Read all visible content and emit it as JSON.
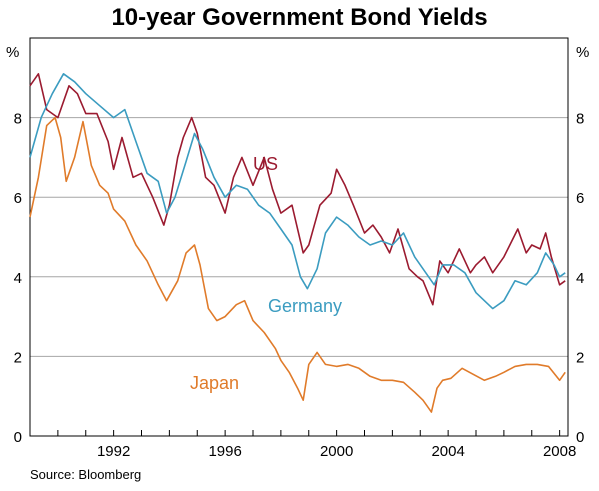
{
  "chart_data": {
    "type": "line",
    "title": "10-year Government Bond Yields",
    "source": "Source: Bloomberg",
    "y_unit_left": "%",
    "y_unit_right": "%",
    "ylim": [
      0,
      10
    ],
    "y_ticks": [
      0,
      2,
      4,
      6,
      8
    ],
    "xlim": [
      1989.0,
      2008.3
    ],
    "x_ticks": [
      "1992",
      "1996",
      "2000",
      "2004",
      "2008"
    ],
    "grid": true,
    "series": [
      {
        "name": "US",
        "color": "#9b1b30",
        "x": [
          1989.0,
          1989.3,
          1989.6,
          1990.0,
          1990.4,
          1990.7,
          1991.0,
          1991.4,
          1991.8,
          1992.0,
          1992.3,
          1992.7,
          1993.0,
          1993.4,
          1993.8,
          1994.0,
          1994.3,
          1994.5,
          1994.8,
          1995.0,
          1995.3,
          1995.6,
          1996.0,
          1996.3,
          1996.6,
          1997.0,
          1997.4,
          1997.7,
          1998.0,
          1998.4,
          1998.8,
          1999.0,
          1999.4,
          1999.8,
          2000.0,
          2000.3,
          2000.6,
          2001.0,
          2001.3,
          2001.6,
          2001.9,
          2002.2,
          2002.6,
          2002.9,
          2003.1,
          2003.45,
          2003.7,
          2004.0,
          2004.4,
          2004.8,
          2005.0,
          2005.3,
          2005.6,
          2006.0,
          2006.5,
          2006.8,
          2007.0,
          2007.3,
          2007.5,
          2007.7,
          2008.0,
          2008.2
        ],
        "y": [
          8.8,
          9.1,
          8.2,
          8.0,
          8.8,
          8.6,
          8.1,
          8.1,
          7.4,
          6.7,
          7.5,
          6.5,
          6.6,
          6.0,
          5.3,
          5.8,
          7.0,
          7.5,
          8.0,
          7.6,
          6.5,
          6.3,
          5.6,
          6.5,
          7.0,
          6.3,
          7.0,
          6.2,
          5.6,
          5.8,
          4.6,
          4.8,
          5.8,
          6.1,
          6.7,
          6.3,
          5.8,
          5.1,
          5.3,
          5.0,
          4.6,
          5.2,
          4.2,
          4.0,
          3.9,
          3.3,
          4.4,
          4.1,
          4.7,
          4.1,
          4.3,
          4.5,
          4.1,
          4.5,
          5.2,
          4.6,
          4.8,
          4.7,
          5.1,
          4.5,
          3.8,
          3.9
        ]
      },
      {
        "name": "Germany",
        "color": "#3b9cc0",
        "x": [
          1989.0,
          1989.4,
          1989.8,
          1990.2,
          1990.6,
          1991.0,
          1991.5,
          1992.0,
          1992.4,
          1992.8,
          1993.2,
          1993.6,
          1993.9,
          1994.2,
          1994.6,
          1994.9,
          1995.2,
          1995.6,
          1996.0,
          1996.4,
          1996.8,
          1997.2,
          1997.6,
          1998.0,
          1998.4,
          1998.7,
          1998.95,
          1999.3,
          1999.6,
          2000.0,
          2000.4,
          2000.8,
          2001.2,
          2001.6,
          2002.0,
          2002.4,
          2002.8,
          2003.2,
          2003.5,
          2003.8,
          2004.2,
          2004.6,
          2005.0,
          2005.3,
          2005.6,
          2006.0,
          2006.4,
          2006.8,
          2007.2,
          2007.5,
          2007.8,
          2008.0,
          2008.2
        ],
        "y": [
          7.0,
          8.0,
          8.6,
          9.1,
          8.9,
          8.6,
          8.3,
          8.0,
          8.2,
          7.4,
          6.6,
          6.4,
          5.6,
          6.0,
          6.9,
          7.6,
          7.2,
          6.5,
          6.0,
          6.3,
          6.2,
          5.8,
          5.6,
          5.2,
          4.8,
          4.0,
          3.7,
          4.2,
          5.1,
          5.5,
          5.3,
          5.0,
          4.8,
          4.9,
          4.8,
          5.1,
          4.5,
          4.1,
          3.8,
          4.3,
          4.3,
          4.1,
          3.6,
          3.4,
          3.2,
          3.4,
          3.9,
          3.8,
          4.1,
          4.6,
          4.3,
          4.0,
          4.1
        ]
      },
      {
        "name": "Japan",
        "color": "#e07b2a",
        "x": [
          1989.0,
          1989.3,
          1989.6,
          1989.9,
          1990.1,
          1990.3,
          1990.6,
          1990.9,
          1991.2,
          1991.5,
          1991.8,
          1992.0,
          1992.4,
          1992.8,
          1993.2,
          1993.6,
          1993.9,
          1994.3,
          1994.6,
          1994.9,
          1995.1,
          1995.4,
          1995.7,
          1996.0,
          1996.4,
          1996.7,
          1997.0,
          1997.4,
          1997.8,
          1998.0,
          1998.3,
          1998.6,
          1998.8,
          1999.0,
          1999.3,
          1999.6,
          2000.0,
          2000.4,
          2000.8,
          2001.2,
          2001.6,
          2002.0,
          2002.4,
          2002.8,
          2003.1,
          2003.4,
          2003.6,
          2003.8,
          2004.1,
          2004.5,
          2004.9,
          2005.3,
          2005.7,
          2006.0,
          2006.4,
          2006.8,
          2007.2,
          2007.6,
          2008.0,
          2008.2
        ],
        "y": [
          5.5,
          6.5,
          7.8,
          8.0,
          7.5,
          6.4,
          7.0,
          7.9,
          6.8,
          6.3,
          6.1,
          5.7,
          5.4,
          4.8,
          4.4,
          3.8,
          3.4,
          3.9,
          4.6,
          4.8,
          4.3,
          3.2,
          2.9,
          3.0,
          3.3,
          3.4,
          2.9,
          2.6,
          2.2,
          1.9,
          1.6,
          1.2,
          0.9,
          1.8,
          2.1,
          1.8,
          1.75,
          1.8,
          1.7,
          1.5,
          1.4,
          1.4,
          1.35,
          1.1,
          0.9,
          0.6,
          1.2,
          1.4,
          1.45,
          1.7,
          1.55,
          1.4,
          1.5,
          1.6,
          1.75,
          1.8,
          1.8,
          1.75,
          1.4,
          1.6
        ]
      }
    ]
  }
}
